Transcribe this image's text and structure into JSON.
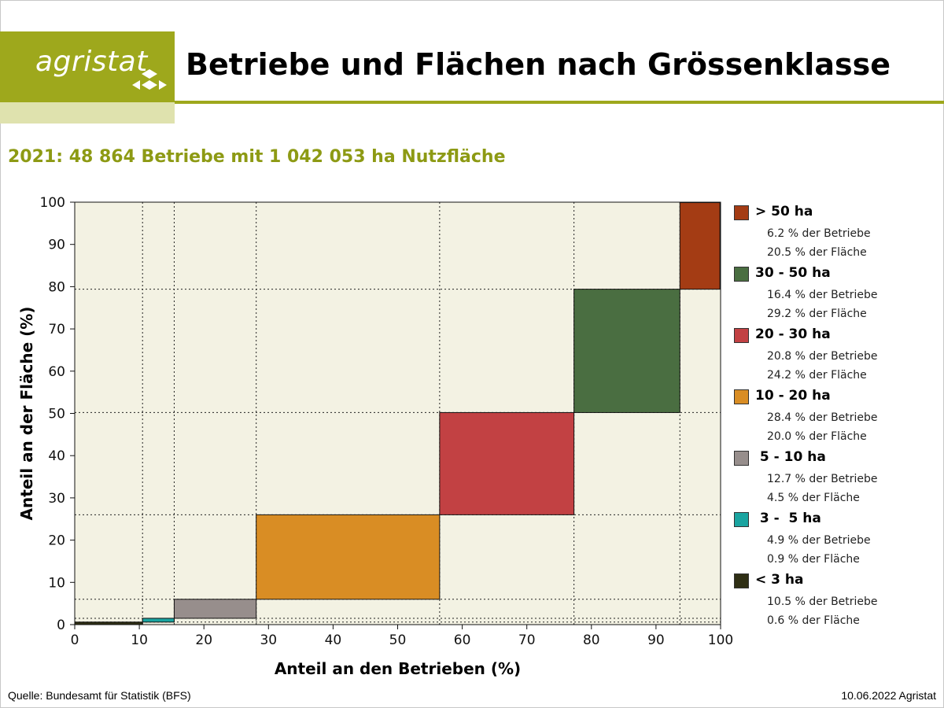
{
  "header": {
    "logo_text": "agristat",
    "title": "Betriebe und Flächen nach Grössenklasse"
  },
  "subtitle": "2021: 48 864 Betriebe mit 1 042 053 ha Nutzfläche",
  "colors": {
    "brand": "#9ea81c",
    "brand_light": "#dfe2ae",
    "subtitle": "#8d9a14",
    "plot_bg": "#f3f2e3"
  },
  "chart_data": {
    "type": "area",
    "description_kind": "marimekko-step",
    "xlabel": "Anteil an den Betrieben (%)",
    "ylabel": "Anteil an der Fläche (%)",
    "xlim": [
      0,
      100
    ],
    "ylim": [
      0,
      100
    ],
    "x_ticks": [
      "0",
      "10",
      "20",
      "30",
      "40",
      "50",
      "60",
      "70",
      "80",
      "90",
      "100"
    ],
    "y_ticks": [
      "0",
      "10",
      "20",
      "30",
      "40",
      "50",
      "60",
      "70",
      "80",
      "90",
      "100"
    ],
    "grid": "dotted at class boundaries",
    "legend_position": "right",
    "series": [
      {
        "name": "< 3 ha",
        "label": "< 3 ha",
        "betriebe_pct": 10.5,
        "flaeche_pct": 0.6,
        "betriebe_text": "10.5 % der Betriebe",
        "flaeche_text": "0.6 % der Fläche",
        "color": "#2f2f14"
      },
      {
        "name": "3 - 5 ha",
        "label": " 3 -  5 ha",
        "betriebe_pct": 4.9,
        "flaeche_pct": 0.9,
        "betriebe_text": "4.9 % der Betriebe",
        "flaeche_text": "0.9 % der Fläche",
        "color": "#1aa4a0"
      },
      {
        "name": "5 - 10 ha",
        "label": " 5 - 10 ha",
        "betriebe_pct": 12.7,
        "flaeche_pct": 4.5,
        "betriebe_text": "12.7 % der Betriebe",
        "flaeche_text": "4.5 % der Fläche",
        "color": "#978e8c"
      },
      {
        "name": "10 - 20 ha",
        "label": "10 - 20 ha",
        "betriebe_pct": 28.4,
        "flaeche_pct": 20.0,
        "betriebe_text": "28.4 % der Betriebe",
        "flaeche_text": "20.0 % der Fläche",
        "color": "#d98d24"
      },
      {
        "name": "20 - 30 ha",
        "label": "20 - 30 ha",
        "betriebe_pct": 20.8,
        "flaeche_pct": 24.2,
        "betriebe_text": "20.8 % der Betriebe",
        "flaeche_text": "24.2 % der Fläche",
        "color": "#c24143"
      },
      {
        "name": "30 - 50 ha",
        "label": "30 - 50 ha",
        "betriebe_pct": 16.4,
        "flaeche_pct": 29.2,
        "betriebe_text": "16.4 % der Betriebe",
        "flaeche_text": "29.2 % der Fläche",
        "color": "#4a6e41"
      },
      {
        "name": "> 50 ha",
        "label": "> 50 ha",
        "betriebe_pct": 6.2,
        "flaeche_pct": 20.5,
        "betriebe_text": "6.2 % der Betriebe",
        "flaeche_text": "20.5 % der Fläche",
        "color": "#a43c14"
      }
    ]
  },
  "footer": {
    "source": "Quelle: Bundesamt für Statistik (BFS)",
    "date": "10.06.2022 Agristat"
  }
}
